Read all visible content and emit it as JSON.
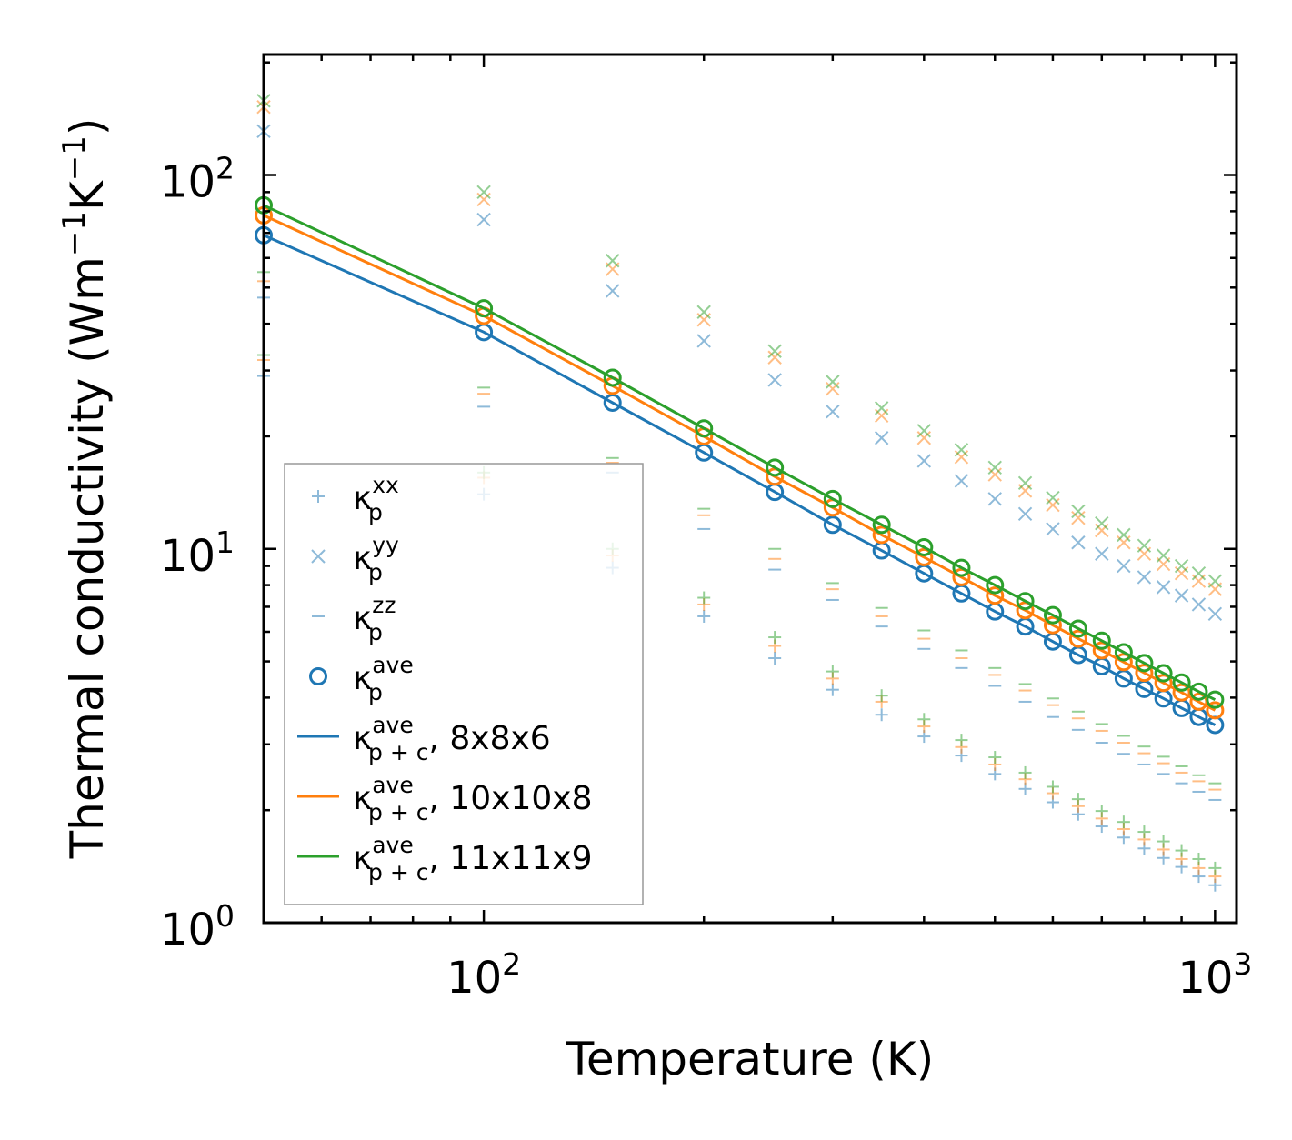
{
  "chart_data": {
    "type": "scatter",
    "title": "",
    "xlabel": "Temperature (K)",
    "ylabel_parts": {
      "base": "Thermal conductivity (Wm",
      "sup1": "−1",
      "mid": "K",
      "sup2": "−1",
      "end": ")"
    },
    "xscale": "log",
    "yscale": "log",
    "xlim": [
      50,
      1070
    ],
    "ylim": [
      1,
      210
    ],
    "xticks": [
      {
        "value": 100,
        "base": "10",
        "exp": "2"
      },
      {
        "value": 1000,
        "base": "10",
        "exp": "3"
      }
    ],
    "yticks": [
      {
        "value": 1,
        "base": "10",
        "exp": "0"
      },
      {
        "value": 10,
        "base": "10",
        "exp": "1"
      },
      {
        "value": 100,
        "base": "10",
        "exp": "2"
      }
    ],
    "legend_position": "lower-left",
    "colors": {
      "blue": "#1f77b4",
      "orange": "#ff7f0e",
      "green": "#2ca02c"
    },
    "x": [
      50,
      100,
      150,
      200,
      250,
      300,
      350,
      400,
      450,
      500,
      550,
      600,
      650,
      700,
      750,
      800,
      850,
      900,
      950,
      1000
    ],
    "series": [
      {
        "name": "8x8x6",
        "color": "#1f77b4",
        "kxx": [
          29,
          14,
          8.9,
          6.6,
          5.1,
          4.2,
          3.6,
          3.15,
          2.8,
          2.5,
          2.28,
          2.1,
          1.95,
          1.81,
          1.69,
          1.58,
          1.49,
          1.41,
          1.33,
          1.26
        ],
        "kyy": [
          131,
          76,
          49,
          36,
          28.3,
          23.3,
          19.8,
          17.2,
          15.2,
          13.6,
          12.4,
          11.3,
          10.4,
          9.7,
          9.0,
          8.4,
          7.9,
          7.5,
          7.1,
          6.7
        ],
        "kzz": [
          47,
          24,
          16,
          11.3,
          8.8,
          7.3,
          6.2,
          5.4,
          4.8,
          4.3,
          3.9,
          3.55,
          3.28,
          3.03,
          2.83,
          2.65,
          2.5,
          2.36,
          2.24,
          2.13
        ],
        "kave": [
          69,
          38,
          24.6,
          18.1,
          14.2,
          11.6,
          9.9,
          8.6,
          7.6,
          6.8,
          6.2,
          5.65,
          5.2,
          4.85,
          4.5,
          4.22,
          3.98,
          3.75,
          3.55,
          3.38
        ],
        "kpc": [
          69,
          38,
          24.6,
          18.1,
          14.2,
          11.6,
          9.9,
          8.6,
          7.6,
          6.8,
          6.2,
          5.65,
          5.2,
          4.85,
          4.5,
          4.22,
          3.98,
          3.75,
          3.55,
          3.38
        ]
      },
      {
        "name": "10x10x8",
        "color": "#ff7f0e",
        "kxx": [
          32,
          15.5,
          9.6,
          7.1,
          5.5,
          4.5,
          3.9,
          3.35,
          2.95,
          2.65,
          2.42,
          2.22,
          2.05,
          1.9,
          1.78,
          1.67,
          1.57,
          1.48,
          1.4,
          1.33
        ],
        "kyy": [
          152,
          86,
          56,
          41,
          32.5,
          26.8,
          22.7,
          19.8,
          17.6,
          15.8,
          14.3,
          13.1,
          12.1,
          11.2,
          10.4,
          9.7,
          9.1,
          8.6,
          8.2,
          7.8
        ],
        "kzz": [
          52,
          26,
          17,
          12.3,
          9.4,
          7.8,
          6.6,
          5.75,
          5.1,
          4.6,
          4.18,
          3.82,
          3.52,
          3.26,
          3.03,
          2.84,
          2.67,
          2.52,
          2.39,
          2.27
        ],
        "kave": [
          78,
          42,
          27.3,
          20,
          15.6,
          12.9,
          10.9,
          9.5,
          8.4,
          7.5,
          6.85,
          6.25,
          5.75,
          5.35,
          4.98,
          4.66,
          4.38,
          4.13,
          3.9,
          3.7
        ],
        "kpc": [
          78,
          42,
          27.3,
          20,
          15.6,
          12.9,
          10.9,
          9.5,
          8.4,
          7.5,
          6.85,
          6.25,
          5.75,
          5.35,
          4.98,
          4.66,
          4.38,
          4.13,
          3.9,
          3.7
        ]
      },
      {
        "name": "11x11x9",
        "color": "#2ca02c",
        "kxx": [
          33,
          16,
          10,
          7.4,
          5.8,
          4.7,
          4.05,
          3.5,
          3.08,
          2.77,
          2.52,
          2.31,
          2.14,
          1.99,
          1.86,
          1.75,
          1.65,
          1.56,
          1.48,
          1.4
        ],
        "kyy": [
          158,
          90,
          59,
          43,
          33.8,
          28,
          23.8,
          20.7,
          18.4,
          16.5,
          15,
          13.7,
          12.6,
          11.7,
          10.9,
          10.2,
          9.6,
          9.0,
          8.6,
          8.2
        ],
        "kzz": [
          55,
          27,
          17.5,
          12.8,
          10,
          8.1,
          6.95,
          6.05,
          5.35,
          4.8,
          4.35,
          3.98,
          3.67,
          3.4,
          3.16,
          2.96,
          2.78,
          2.62,
          2.48,
          2.36
        ],
        "kave": [
          83,
          44,
          28.7,
          21,
          16.5,
          13.6,
          11.6,
          10.1,
          8.9,
          8.0,
          7.25,
          6.65,
          6.12,
          5.68,
          5.29,
          4.95,
          4.65,
          4.39,
          4.15,
          3.95
        ],
        "kpc": [
          83,
          44,
          28.7,
          21,
          16.5,
          13.6,
          11.6,
          10.1,
          8.9,
          8.0,
          7.25,
          6.65,
          6.12,
          5.68,
          5.29,
          4.95,
          4.65,
          4.39,
          4.15,
          3.95
        ]
      }
    ],
    "legend": [
      {
        "marker": "plus",
        "sym": "κ",
        "sub": "p",
        "sup": "xx",
        "suffix": ""
      },
      {
        "marker": "cross",
        "sym": "κ",
        "sub": "p",
        "sup": "yy",
        "suffix": ""
      },
      {
        "marker": "dash",
        "sym": "κ",
        "sub": "p",
        "sup": "zz",
        "suffix": ""
      },
      {
        "marker": "circle",
        "sym": "κ",
        "sub": "p",
        "sup": "ave",
        "suffix": ""
      },
      {
        "marker": "line-blue",
        "sym": "κ",
        "sub": "p + c",
        "sup": "ave",
        "suffix": ", 8x8x6"
      },
      {
        "marker": "line-orange",
        "sym": "κ",
        "sub": "p + c",
        "sup": "ave",
        "suffix": ", 10x10x8"
      },
      {
        "marker": "line-green",
        "sym": "κ",
        "sub": "p + c",
        "sup": "ave",
        "suffix": ", 11x11x9"
      }
    ]
  }
}
